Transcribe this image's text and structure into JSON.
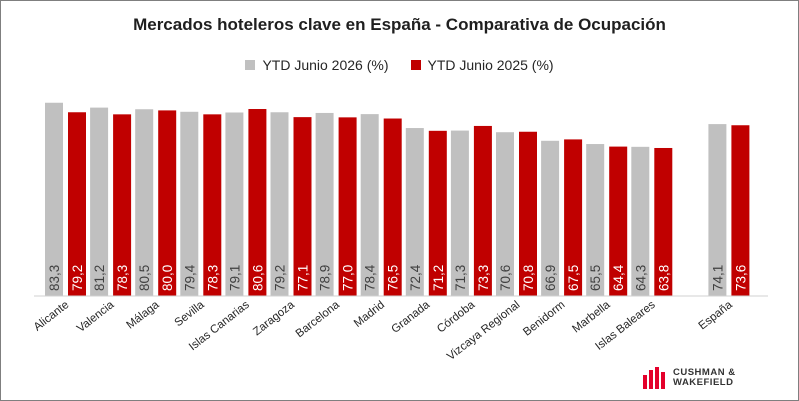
{
  "chart_data": {
    "type": "bar",
    "title": "Mercados hoteleros clave en España - Comparativa de Ocupación",
    "categories": [
      "Alicante",
      "Valencia",
      "Málaga",
      "Sevilla",
      "Islas Canarias",
      "Zaragoza",
      "Barcelona",
      "Madrid",
      "Granada",
      "Córdoba",
      "Vizcaya Regional",
      "Benidorm",
      "Marbella",
      "Islas Baleares",
      "España"
    ],
    "series": [
      {
        "name": "YTD Junio 2026 (%)",
        "color": "#c0c0c0",
        "values": [
          83.3,
          81.2,
          80.5,
          79.4,
          79.1,
          79.2,
          78.9,
          78.4,
          72.4,
          71.3,
          70.6,
          66.9,
          65.5,
          64.3,
          74.1
        ],
        "labels": [
          "83,3",
          "81,2",
          "80,5",
          "79,4",
          "79,1",
          "79,2",
          "78,9",
          "78,4",
          "72,4",
          "71,3",
          "70,6",
          "66,9",
          "65,5",
          "64,3",
          "74,1"
        ]
      },
      {
        "name": "YTD Junio 2025 (%)",
        "color": "#c00000",
        "values": [
          79.2,
          78.3,
          80.0,
          78.3,
          80.6,
          77.1,
          77.0,
          76.5,
          71.2,
          73.3,
          70.8,
          67.5,
          64.4,
          63.8,
          73.6
        ],
        "labels": [
          "79,2",
          "78,3",
          "80,0",
          "78,3",
          "80,6",
          "77,1",
          "77,0",
          "76,5",
          "71,2",
          "73,3",
          "70,8",
          "67,5",
          "64,4",
          "63,8",
          "73,6"
        ]
      }
    ],
    "ylim": [
      0,
      100
    ],
    "grid": false,
    "legend_position": "top"
  },
  "branding": {
    "name": "CUSHMAN &\nWAKEFIELD",
    "color": "#e4002b"
  }
}
